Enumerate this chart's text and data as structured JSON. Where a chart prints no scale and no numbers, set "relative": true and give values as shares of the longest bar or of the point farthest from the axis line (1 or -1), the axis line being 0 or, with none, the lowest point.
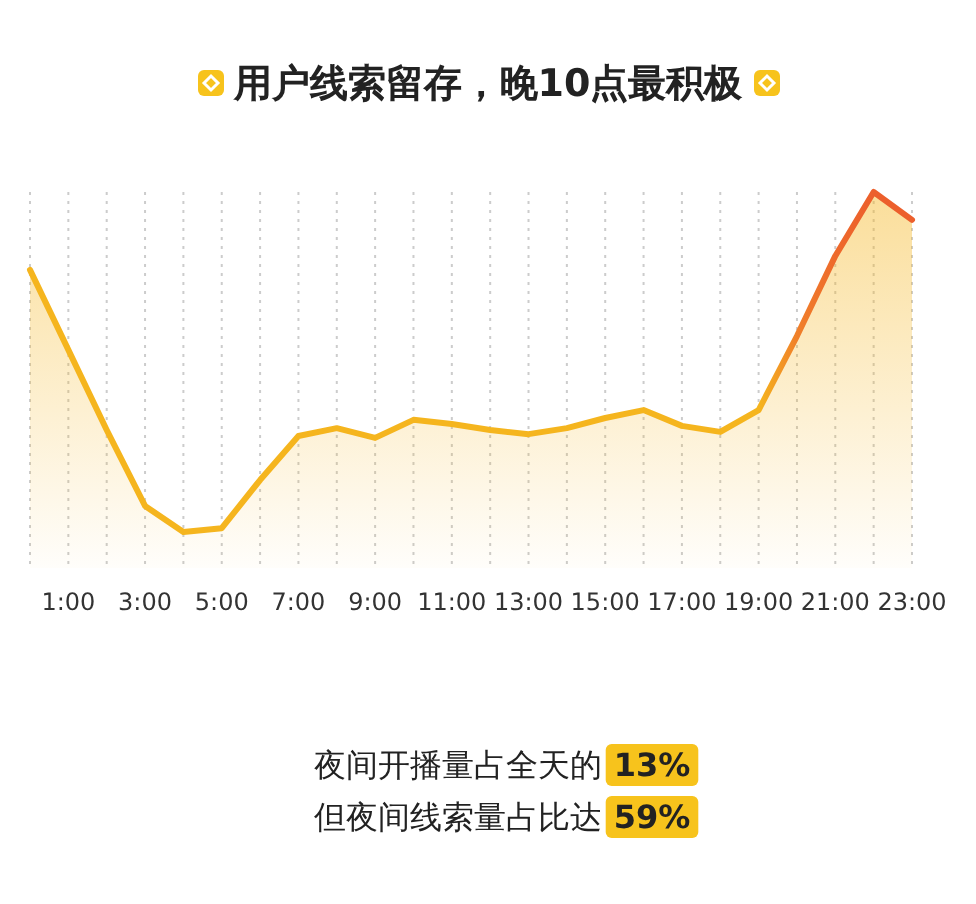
{
  "chart_data": {
    "type": "area",
    "title": "用户线索留存，晚10点最积极",
    "relative": true,
    "grid": "x",
    "marker": "none",
    "line_style": "solid",
    "categories": [
      null,
      "1:00",
      null,
      "3:00",
      null,
      "5:00",
      null,
      "7:00",
      null,
      "9:00",
      null,
      "11:00",
      null,
      "13:00",
      null,
      "15:00",
      null,
      "17:00",
      null,
      "19:00",
      null,
      "21:00",
      null,
      "23:00"
    ],
    "series": [
      {
        "color": "#f5b51e",
        "colors": [
          "#f5b51e",
          "#f5b51e",
          "#f5b51e",
          "#f5b51e",
          "#f5b51e",
          "#f5b51e",
          "#f5b51e",
          "#f5b51e",
          "#f5b51e",
          "#f5b51e",
          "#f5b51e",
          "#f5b51e",
          "#f5b51e",
          "#f5b51e",
          "#f5b51e",
          "#f5b51e",
          "#f5b51e",
          "#f5b51e",
          "#f5b51e",
          "#f5b51e",
          "#f0802a",
          "#ee6a2c",
          "#ec5f2c",
          "#ec5f2c"
        ],
        "values": [
          0.793,
          0.58,
          0.367,
          0.165,
          0.096,
          0.106,
          0.234,
          0.351,
          0.372,
          0.346,
          0.394,
          0.383,
          0.367,
          0.356,
          0.372,
          0.399,
          0.42,
          0.378,
          0.362,
          0.42,
          0.617,
          0.83,
          1,
          0.926
        ]
      }
    ],
    "annotations": [
      "夜间开播量占全天的",
      "13%",
      "但夜间线索量占比达",
      "59%"
    ]
  }
}
